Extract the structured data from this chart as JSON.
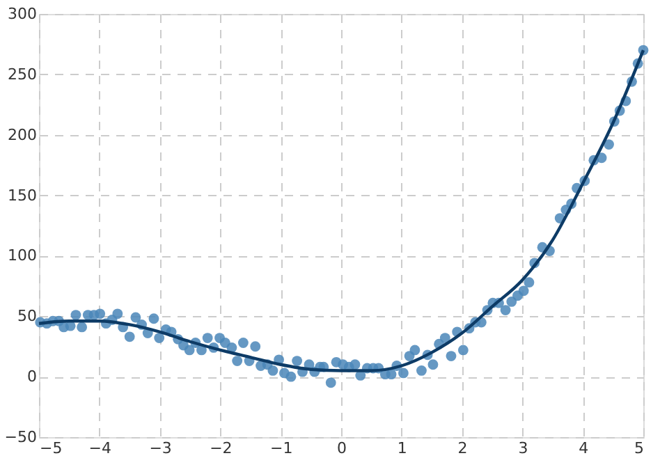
{
  "chart_data": {
    "type": "scatter",
    "xlim": [
      -5,
      5
    ],
    "ylim": [
      -50,
      300
    ],
    "xticks": [
      -5,
      -4,
      -3,
      -2,
      -1,
      0,
      1,
      2,
      3,
      4,
      5
    ],
    "yticks": [
      -50,
      0,
      50,
      100,
      150,
      200,
      250,
      300
    ],
    "grid": true,
    "series": [
      {
        "marker": "circle",
        "color": "#4a86b8",
        "x": [
          -4.98,
          -4.87,
          -4.77,
          -4.67,
          -4.59,
          -4.48,
          -4.39,
          -4.29,
          -4.19,
          -4.09,
          -3.99,
          -3.89,
          -3.79,
          -3.7,
          -3.61,
          -3.5,
          -3.4,
          -3.3,
          -3.2,
          -3.1,
          -3.01,
          -2.9,
          -2.81,
          -2.7,
          -2.61,
          -2.51,
          -2.41,
          -2.31,
          -2.21,
          -2.11,
          -2.01,
          -1.92,
          -1.81,
          -1.72,
          -1.62,
          -1.52,
          -1.42,
          -1.33,
          -1.22,
          -1.13,
          -1.03,
          -0.94,
          -0.83,
          -0.73,
          -0.64,
          -0.53,
          -0.44,
          -0.35,
          -0.29,
          -0.17,
          -0.08,
          0.03,
          0.13,
          0.23,
          0.32,
          0.43,
          0.53,
          0.62,
          0.73,
          0.83,
          0.92,
          1.03,
          1.13,
          1.22,
          1.33,
          1.43,
          1.52,
          1.62,
          1.72,
          1.82,
          1.92,
          2.02,
          2.12,
          2.22,
          2.32,
          2.42,
          2.51,
          2.61,
          2.72,
          2.82,
          2.92,
          3.02,
          3.11,
          3.2,
          3.33,
          3.45,
          3.62,
          3.72,
          3.81,
          3.9,
          4.03,
          4.18,
          4.31,
          4.43,
          4.52,
          4.61,
          4.71,
          4.81,
          4.91,
          5.0
        ],
        "values": [
          45,
          44,
          46,
          46,
          41,
          42,
          51,
          41,
          51,
          51,
          52,
          44,
          47,
          52,
          41,
          33,
          49,
          43,
          36,
          48,
          32,
          39,
          37,
          31,
          26,
          22,
          28,
          22,
          32,
          24,
          32,
          28,
          24,
          13,
          28,
          13,
          25,
          9,
          10,
          5,
          14,
          3,
          0,
          13,
          4,
          10,
          4,
          8,
          8,
          -5,
          12,
          10,
          8,
          10,
          1,
          7,
          7,
          7,
          2,
          2,
          9,
          3,
          17,
          22,
          5,
          18,
          10,
          27,
          32,
          17,
          37,
          22,
          40,
          45,
          45,
          55,
          61,
          61,
          55,
          62,
          67,
          71,
          78,
          94,
          107,
          104,
          131,
          138,
          143,
          156,
          162,
          179,
          181,
          192,
          211,
          220,
          228,
          244,
          259,
          270
        ]
      },
      {
        "type": "line",
        "line_style": "solid",
        "color": "#0d3b66",
        "x": [
          -5,
          -4.5,
          -4,
          -3.5,
          -3,
          -2.5,
          -2,
          -1.5,
          -1,
          -0.5,
          0,
          0.5,
          1,
          1.5,
          2,
          2.5,
          3,
          3.5,
          4,
          4.5,
          5
        ],
        "values": [
          44,
          46,
          46,
          43,
          37,
          29,
          22,
          16,
          10,
          6,
          5,
          5,
          9,
          20,
          36,
          58,
          80,
          113,
          160,
          210,
          270
        ]
      }
    ]
  }
}
